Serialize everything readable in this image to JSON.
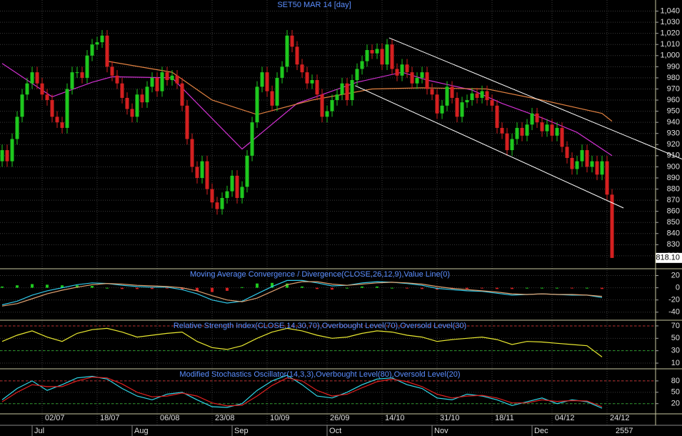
{
  "chart_data": [
    {
      "type": "candlestick",
      "title": "SET50 MAR 14   [day]",
      "open": [
        905,
        915,
        905,
        925,
        945,
        965,
        975,
        985,
        975,
        965,
        960,
        945,
        940,
        935,
        970,
        985,
        985,
        980,
        1000,
        1010,
        1012,
        1018,
        990,
        982,
        975,
        962,
        952,
        945,
        965,
        958,
        972,
        980,
        968,
        985,
        978,
        982,
        975,
        955,
        925,
        900,
        890,
        905,
        880,
        868,
        862,
        872,
        878,
        892,
        872,
        882,
        910,
        940,
        972,
        985,
        968,
        955,
        980,
        990,
        1018,
        1008,
        992,
        985,
        975,
        978,
        965,
        945,
        950,
        960,
        965,
        975,
        960,
        978,
        988,
        995,
        1005,
        1002,
        1006,
        992,
        1010,
        988,
        982,
        992,
        985,
        975,
        980,
        985,
        970,
        965,
        948,
        955,
        972,
        962,
        945,
        958,
        960,
        966,
        962,
        968,
        960,
        955,
        935,
        930,
        915,
        925,
        935,
        928,
        938,
        948,
        940,
        932,
        938,
        928,
        935,
        918,
        908,
        898,
        905,
        915,
        900,
        905,
        893,
        905,
        875
      ],
      "high": [
        920,
        920,
        930,
        950,
        970,
        980,
        990,
        990,
        980,
        970,
        965,
        950,
        945,
        975,
        990,
        990,
        990,
        1005,
        1015,
        1017,
        1023,
        1023,
        995,
        987,
        980,
        967,
        957,
        970,
        970,
        977,
        985,
        985,
        990,
        990,
        987,
        987,
        980,
        960,
        930,
        905,
        910,
        910,
        885,
        873,
        877,
        883,
        897,
        897,
        887,
        915,
        945,
        977,
        990,
        990,
        973,
        985,
        995,
        1023,
        1023,
        1013,
        997,
        990,
        983,
        983,
        970,
        955,
        965,
        970,
        980,
        980,
        983,
        993,
        1000,
        1010,
        1010,
        1011,
        1011,
        1015,
        1015,
        993,
        997,
        997,
        990,
        985,
        990,
        990,
        975,
        970,
        960,
        977,
        977,
        967,
        963,
        965,
        971,
        971,
        973,
        973,
        965,
        960,
        940,
        935,
        930,
        940,
        940,
        943,
        953,
        953,
        945,
        943,
        943,
        940,
        940,
        923,
        913,
        910,
        920,
        920,
        910,
        910,
        910,
        910,
        880
      ],
      "low": [
        900,
        900,
        900,
        920,
        940,
        960,
        970,
        970,
        960,
        955,
        940,
        935,
        930,
        930,
        965,
        980,
        975,
        975,
        995,
        1005,
        1007,
        985,
        977,
        970,
        957,
        947,
        940,
        940,
        953,
        953,
        967,
        963,
        963,
        973,
        973,
        970,
        950,
        920,
        895,
        885,
        885,
        875,
        863,
        857,
        857,
        867,
        873,
        867,
        867,
        877,
        905,
        935,
        967,
        963,
        950,
        950,
        975,
        985,
        1003,
        987,
        980,
        970,
        970,
        960,
        940,
        940,
        945,
        955,
        960,
        955,
        955,
        973,
        983,
        990,
        997,
        997,
        987,
        987,
        983,
        977,
        977,
        980,
        970,
        970,
        975,
        965,
        960,
        943,
        943,
        950,
        957,
        940,
        940,
        953,
        955,
        957,
        957,
        955,
        950,
        930,
        925,
        910,
        910,
        920,
        923,
        923,
        933,
        935,
        927,
        927,
        923,
        923,
        913,
        903,
        893,
        893,
        900,
        895,
        895,
        888,
        888,
        870,
        818
      ],
      "close": [
        915,
        905,
        925,
        945,
        965,
        975,
        985,
        975,
        965,
        960,
        945,
        940,
        935,
        970,
        985,
        985,
        980,
        1000,
        1010,
        1012,
        1018,
        990,
        982,
        975,
        962,
        952,
        945,
        965,
        958,
        972,
        980,
        968,
        985,
        978,
        982,
        975,
        955,
        925,
        900,
        890,
        905,
        880,
        868,
        862,
        872,
        878,
        892,
        872,
        882,
        910,
        940,
        972,
        985,
        968,
        955,
        980,
        990,
        1018,
        1008,
        992,
        985,
        975,
        978,
        965,
        945,
        950,
        960,
        965,
        975,
        960,
        978,
        988,
        995,
        1005,
        1002,
        1006,
        992,
        1010,
        988,
        982,
        992,
        985,
        975,
        980,
        985,
        970,
        965,
        948,
        955,
        972,
        962,
        945,
        958,
        960,
        966,
        962,
        968,
        960,
        955,
        935,
        930,
        915,
        925,
        935,
        928,
        938,
        948,
        940,
        932,
        938,
        928,
        935,
        918,
        908,
        898,
        905,
        915,
        900,
        905,
        893,
        905,
        875,
        818.1
      ],
      "up_color": "#1ec81e",
      "down_color": "#d42020",
      "moving_averages": [
        {
          "color": "#d030d0",
          "x": [
            0,
            10,
            18,
            22,
            34,
            48,
            59,
            71,
            80,
            85,
            94,
            100,
            108,
            115,
            122
          ],
          "values": [
            993,
            963,
            976,
            981,
            980,
            916,
            957,
            976,
            985,
            978,
            969,
            957,
            944,
            931,
            910
          ]
        },
        {
          "color": "#e08040",
          "x": [
            21,
            34,
            42,
            51,
            62,
            74,
            84,
            97,
            108,
            120,
            122
          ],
          "values": [
            995,
            985,
            960,
            947,
            960,
            970,
            971,
            970,
            960,
            948,
            941
          ]
        }
      ],
      "trendlines": [
        {
          "color": "#ffffff",
          "x": [
            77.4,
            136
          ],
          "values": [
            1016,
            907
          ]
        },
        {
          "color": "#ffffff",
          "x": [
            70.6,
            124.3
          ],
          "values": [
            973,
            863
          ]
        }
      ],
      "last_price": {
        "value": 818.1,
        "label": "818.10"
      },
      "xlim": [
        -0.43,
        130.71
      ],
      "ylim": [
        809,
        1050
      ],
      "yticks": [
        820,
        830,
        840,
        850,
        860,
        870,
        880,
        890,
        900,
        910,
        920,
        930,
        940,
        950,
        960,
        970,
        980,
        990,
        {
          "value": 1000,
          "label": "1,000"
        },
        {
          "value": 1010,
          "label": "1,010"
        },
        {
          "value": 1020,
          "label": "1,020"
        },
        {
          "value": 1030,
          "label": "1,030"
        },
        {
          "value": 1040,
          "label": "1,040"
        }
      ],
      "xticks": [
        {
          "value": 8,
          "label": "02/07"
        },
        {
          "value": 19,
          "label": "18/07"
        },
        {
          "value": 31,
          "label": "06/08"
        },
        {
          "value": 42,
          "label": "23/08"
        },
        {
          "value": 53,
          "label": "10/09"
        },
        {
          "value": 65,
          "label": "26/09"
        },
        {
          "value": 76,
          "label": "14/10"
        },
        {
          "value": 87,
          "label": "31/10"
        },
        {
          "value": 98,
          "label": "18/11"
        },
        {
          "value": 110,
          "label": "04/12"
        },
        {
          "value": 121,
          "label": "24/12"
        }
      ],
      "month_ticks": [
        {
          "value": 6,
          "label": "Jul"
        },
        {
          "value": 26,
          "label": "Aug"
        },
        {
          "value": 46,
          "label": "Sep"
        },
        {
          "value": 65,
          "label": "Oct"
        },
        {
          "value": 86,
          "label": "Nov"
        },
        {
          "value": 106,
          "label": "Dec"
        }
      ],
      "year_label": "2557",
      "grid": true
    },
    {
      "type": "combo",
      "title": "Moving Average Convergence / Divergence(CLOSE,26,12,9),Value Line(0)",
      "x": [
        0,
        3,
        6,
        9,
        12,
        15,
        18,
        21,
        24,
        27,
        30,
        33,
        36,
        39,
        42,
        45,
        48,
        51,
        54,
        57,
        60,
        63,
        66,
        69,
        72,
        75,
        78,
        81,
        84,
        87,
        90,
        93,
        96,
        99,
        102,
        105,
        108,
        111,
        114,
        117,
        120
      ],
      "up_color": "#1ec81e",
      "down_color": "#d42020",
      "series": [
        {
          "kind": "bar",
          "values": [
            2,
            4,
            6,
            5,
            4,
            4,
            3,
            0,
            -2,
            -2,
            -2,
            -1,
            -3,
            -5,
            -7,
            -5,
            1,
            7,
            8,
            7,
            2,
            -2,
            -3,
            0,
            2,
            2,
            0,
            -1,
            -2,
            -3,
            -2,
            -2,
            -1,
            -2,
            -2,
            0,
            0,
            0,
            -1,
            0,
            -2
          ]
        },
        {
          "color": "#30c8e8",
          "values": [
            -28,
            -22,
            -12,
            -5,
            0,
            5,
            8,
            7,
            4,
            2,
            1,
            1,
            -3,
            -10,
            -20,
            -25,
            -22,
            -10,
            2,
            12,
            12,
            8,
            3,
            4,
            8,
            10,
            9,
            7,
            4,
            -1,
            -3,
            -5,
            -6,
            -9,
            -12,
            -11,
            -10,
            -11,
            -12,
            -12,
            -16
          ]
        },
        {
          "color": "#e0a070",
          "values": [
            -30,
            -26,
            -18,
            -10,
            -4,
            1,
            5,
            7,
            6,
            4,
            3,
            2,
            0,
            -5,
            -13,
            -20,
            -23,
            -17,
            -6,
            5,
            10,
            10,
            6,
            4,
            6,
            8,
            9,
            8,
            6,
            2,
            -1,
            -3,
            -5,
            -7,
            -10,
            -11,
            -10,
            -11,
            -11,
            -12,
            -14
          ]
        }
      ],
      "ylim": [
        -52,
        30
      ],
      "yticks": [
        20,
        0,
        -20,
        -40
      ]
    },
    {
      "type": "line",
      "title": "Relative Strength Index(CLOSE,14,30,70),Overbought Level(70),Oversold Level(30)",
      "x": [
        0,
        3,
        6,
        9,
        12,
        15,
        18,
        21,
        24,
        27,
        30,
        33,
        36,
        39,
        42,
        45,
        48,
        51,
        54,
        57,
        60,
        63,
        66,
        69,
        72,
        75,
        78,
        81,
        84,
        87,
        90,
        93,
        96,
        99,
        102,
        105,
        108,
        111,
        114,
        117,
        120
      ],
      "series": [
        {
          "color": "#e8e830",
          "values": [
            45,
            55,
            62,
            52,
            45,
            58,
            64,
            66,
            60,
            52,
            55,
            58,
            60,
            45,
            35,
            32,
            38,
            50,
            60,
            66,
            62,
            55,
            50,
            52,
            58,
            62,
            60,
            55,
            52,
            45,
            48,
            50,
            52,
            48,
            40,
            45,
            44,
            42,
            40,
            38,
            20
          ]
        }
      ],
      "levels": [
        {
          "value": 70,
          "color": "#c03030"
        },
        {
          "value": 30,
          "color": "#2a9a2a"
        }
      ],
      "ylim": [
        2,
        78
      ],
      "yticks": [
        70,
        50,
        30,
        10
      ]
    },
    {
      "type": "line",
      "title": "Modified Stochastics Oscillator(14,3,3),Overbought Level(80),Oversold Level(20)",
      "x": [
        0,
        3,
        6,
        9,
        12,
        15,
        18,
        21,
        24,
        27,
        30,
        33,
        36,
        39,
        42,
        45,
        48,
        51,
        54,
        57,
        60,
        63,
        66,
        69,
        72,
        75,
        78,
        81,
        84,
        87,
        90,
        93,
        96,
        99,
        102,
        105,
        108,
        111,
        114,
        117,
        120
      ],
      "series": [
        {
          "color": "#30d8e8",
          "values": [
            30,
            60,
            80,
            55,
            70,
            88,
            92,
            85,
            60,
            40,
            30,
            45,
            50,
            30,
            12,
            10,
            20,
            55,
            80,
            95,
            70,
            40,
            35,
            50,
            70,
            85,
            88,
            70,
            60,
            35,
            30,
            45,
            40,
            30,
            15,
            25,
            35,
            20,
            30,
            25,
            8
          ]
        },
        {
          "color": "#e02020",
          "values": [
            25,
            50,
            70,
            65,
            65,
            80,
            90,
            88,
            72,
            50,
            38,
            40,
            48,
            40,
            22,
            14,
            16,
            40,
            68,
            88,
            80,
            55,
            40,
            45,
            62,
            78,
            85,
            78,
            65,
            45,
            35,
            40,
            42,
            35,
            22,
            22,
            30,
            26,
            28,
            27,
            12
          ]
        }
      ],
      "levels": [
        {
          "value": 80,
          "color": "#c03030"
        },
        {
          "value": 20,
          "color": "#2a9a2a"
        }
      ],
      "ylim": [
        -5,
        110
      ],
      "yticks": [
        80,
        50,
        20
      ]
    }
  ]
}
